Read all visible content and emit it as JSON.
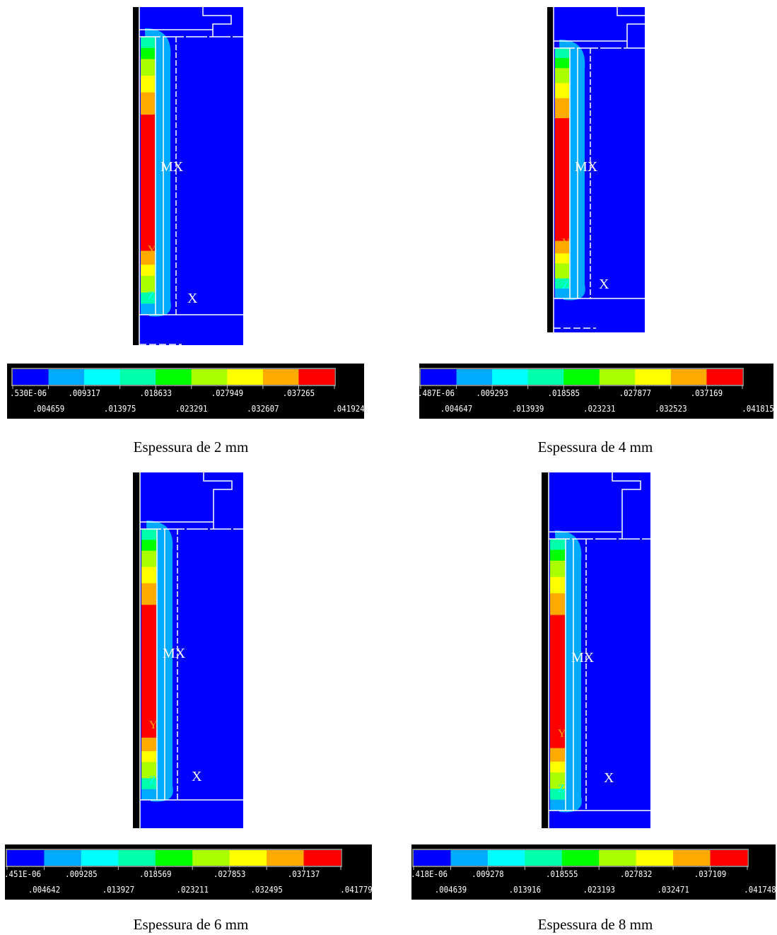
{
  "colors": {
    "background": "#000000",
    "contour": [
      "#0000ff",
      "#00aaff",
      "#00ffff",
      "#00ffaa",
      "#00ff00",
      "#aaff00",
      "#ffff00",
      "#ffaa00",
      "#ff0000"
    ],
    "lines": "#ffffff",
    "legend_text": "#ffffff",
    "caption_text": "#000000"
  },
  "panels": [
    {
      "caption": "Espessura de 2 mm",
      "labels": {
        "max": "MX",
        "axis_y": "Y",
        "axis_z": "Z",
        "axis_x": "X"
      },
      "legend": {
        "top_values": [
          ".530E-06",
          ".009317",
          ".018633",
          ".027949",
          ".037265"
        ],
        "bottom_values": [
          ".004659",
          ".013975",
          ".023291",
          ".032607",
          ".041924"
        ]
      }
    },
    {
      "caption": "Espessura de 4 mm",
      "labels": {
        "max": "MX",
        "axis_y": "Y",
        "axis_z": "Z",
        "axis_x": "X"
      },
      "legend": {
        "top_values": [
          ".487E-06",
          ".009293",
          ".018585",
          ".027877",
          ".037169"
        ],
        "bottom_values": [
          ".004647",
          ".013939",
          ".023231",
          ".032523",
          ".041815"
        ]
      }
    },
    {
      "caption": "Espessura de 6 mm",
      "labels": {
        "max": "MX",
        "axis_y": "Y",
        "axis_z": "Z",
        "axis_x": "X"
      },
      "legend": {
        "top_values": [
          ".451E-06",
          ".009285",
          ".018569",
          ".027853",
          ".037137"
        ],
        "bottom_values": [
          ".004642",
          ".013927",
          ".023211",
          ".032495",
          ".041779"
        ]
      }
    },
    {
      "caption": "Espessura de 8 mm",
      "labels": {
        "max": "MX",
        "axis_y": "Y",
        "axis_z": "Z",
        "axis_x": "X"
      },
      "legend": {
        "top_values": [
          ".418E-06",
          ".009278",
          ".018555",
          ".027832",
          ".037109"
        ],
        "bottom_values": [
          ".004639",
          ".013916",
          ".023193",
          ".032471",
          ".041748"
        ]
      }
    }
  ]
}
